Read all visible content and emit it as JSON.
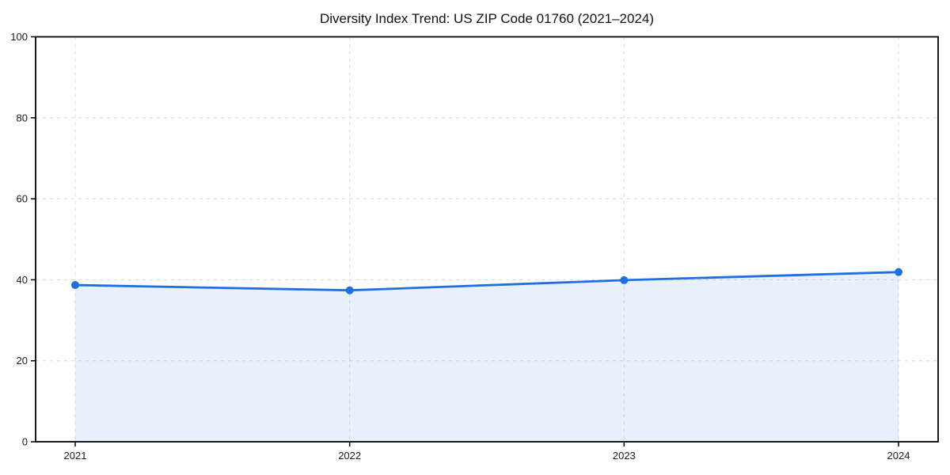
{
  "title": "Diversity Index Trend: US ZIP Code 01760 (2021–2024)",
  "chart_data": {
    "type": "area",
    "title": "Diversity Index Trend: US ZIP Code 01760 (2021–2024)",
    "categories": [
      "2021",
      "2022",
      "2023",
      "2024"
    ],
    "series": [
      {
        "name": "Diversity Index",
        "values": [
          38.7,
          37.4,
          39.9,
          41.9
        ]
      }
    ],
    "xlabel": "",
    "ylabel": "",
    "ylim": [
      0,
      100
    ],
    "yticks": [
      0,
      20,
      40,
      60,
      80,
      100
    ],
    "grid": true,
    "grid_style": "dashed",
    "legend_position": "none",
    "marker": "circle",
    "colors": {
      "line": "#1f6fe0",
      "marker": "#1f6fe0",
      "area_fill": "#1f6fe0",
      "area_fill_opacity": 0.1,
      "grid": "#d8d8d8",
      "spine": "#000000",
      "text": "#1a1a1a",
      "background": "#ffffff"
    }
  }
}
